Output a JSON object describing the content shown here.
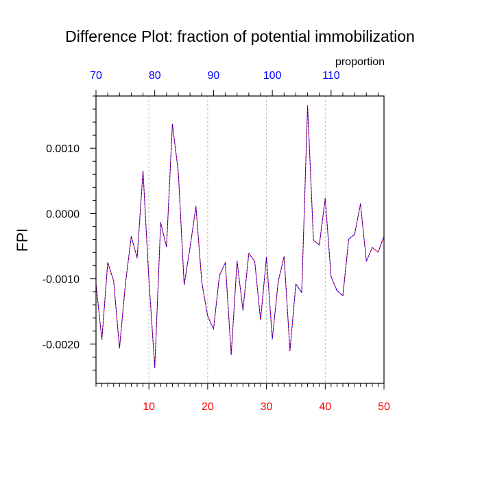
{
  "chart_data": {
    "type": "line",
    "title": "Difference Plot: fraction of potential immobilization",
    "ylabel": "FPI",
    "top_axis_label": "proportion",
    "xlim": [
      1,
      50
    ],
    "ylim": [
      -0.0026,
      0.0018
    ],
    "top_xlim": [
      70,
      119
    ],
    "x_ticks": [
      10,
      20,
      30,
      40,
      50
    ],
    "top_x_ticks": [
      70,
      80,
      90,
      100,
      110
    ],
    "y_ticks": [
      0.001,
      0.0,
      -0.001,
      -0.002
    ],
    "y_tick_labels": [
      "0.0010",
      "0.0000",
      "-0.0010",
      "-0.0020"
    ],
    "x_tick_labels": [
      "10",
      "20",
      "30",
      "40",
      "50"
    ],
    "top_x_tick_labels": [
      "70",
      "80",
      "90",
      "100",
      "110"
    ],
    "grid": "vertical dashed at major x ticks",
    "colors": {
      "bottom_ticks": "#ff0000",
      "top_ticks": "#0000ff",
      "series_red": "#ff0000",
      "series_blue": "#0000ff",
      "grid": "#bbbbbb"
    },
    "series": [
      {
        "values": [
          -0.00108,
          -0.00193,
          -0.00075,
          -0.00103,
          -0.00206,
          -0.00108,
          -0.00035,
          -0.00068,
          0.00065,
          -0.00101,
          -0.00236,
          -0.00014,
          -0.00051,
          0.00137,
          0.00064,
          -0.00109,
          -0.00052,
          0.00011,
          -0.00105,
          -0.00157,
          -0.00177,
          -0.00095,
          -0.00075,
          -0.00216,
          -0.00073,
          -0.00148,
          -0.00061,
          -0.00073,
          -0.00163,
          -0.00067,
          -0.00192,
          -0.00104,
          -0.00066,
          -0.0021,
          -0.00108,
          -0.00121,
          0.00165,
          -0.00041,
          -0.00048,
          0.00023,
          -0.00097,
          -0.00118,
          -0.00126,
          -0.00039,
          -0.00032,
          0.00015,
          -0.00073,
          -0.00052,
          -0.00059,
          -0.00035
        ]
      }
    ]
  }
}
